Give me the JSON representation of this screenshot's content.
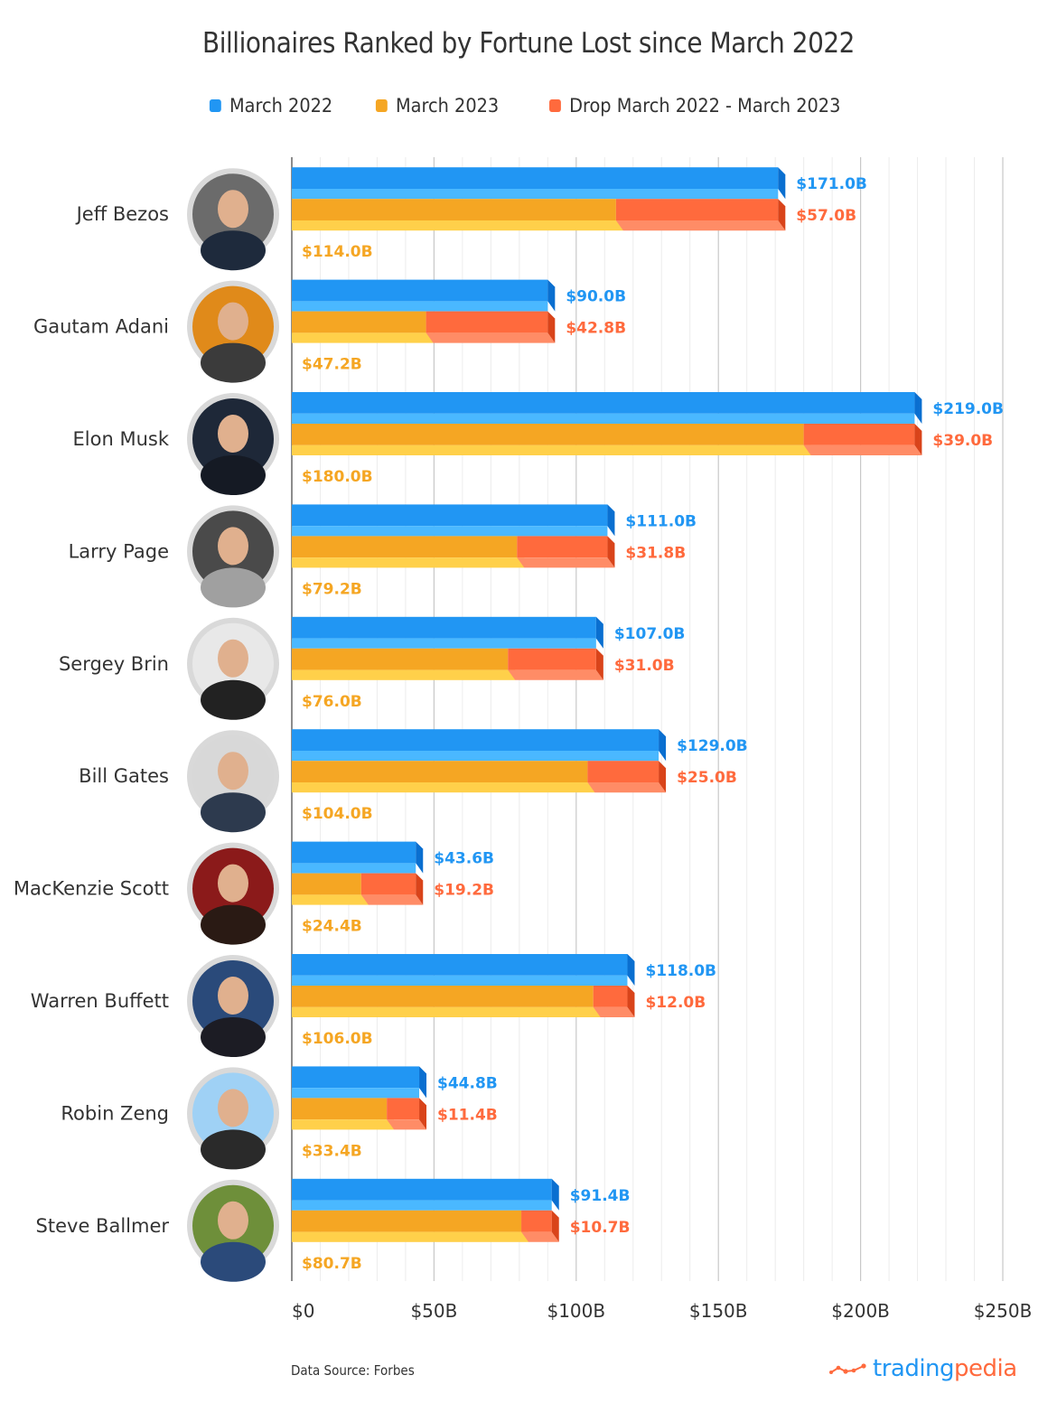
{
  "chart_data": {
    "type": "bar",
    "orientation": "horizontal",
    "title": "Billionaires Ranked by Fortune Lost since March 2022",
    "legend": {
      "placement": "top-center",
      "entries": [
        {
          "name": "March 2022",
          "color": "#2196f3"
        },
        {
          "name": "March 2023",
          "color": "#f5a623"
        },
        {
          "name": "Drop March 2022 - March 2023",
          "color": "#ff6a3d"
        }
      ]
    },
    "categories": [
      "Jeff Bezos",
      "Gautam Adani",
      "Elon Musk",
      "Larry Page",
      "Sergey Brin",
      "Bill Gates",
      "MacKenzie Scott",
      "Warren Buffett",
      "Robin Zeng",
      "Steve Ballmer"
    ],
    "series": [
      {
        "name": "March 2022",
        "values": [
          171.0,
          90.0,
          219.0,
          111.0,
          107.0,
          129.0,
          43.6,
          118.0,
          44.8,
          91.4
        ]
      },
      {
        "name": "March 2023",
        "values": [
          114.0,
          47.2,
          180.0,
          79.2,
          76.0,
          104.0,
          24.4,
          106.0,
          33.4,
          80.7
        ]
      },
      {
        "name": "Drop March 2022 - March 2023",
        "values": [
          57.0,
          42.8,
          39.0,
          31.8,
          31.0,
          25.0,
          19.2,
          12.0,
          11.4,
          10.7
        ],
        "stacked_on": "March 2023"
      }
    ],
    "data_labels": {
      "March 2022": [
        "$171.0B",
        "$90.0B",
        "$219.0B",
        "$111.0B",
        "$107.0B",
        "$129.0B",
        "$43.6B",
        "$118.0B",
        "$44.8B",
        "$91.4B"
      ],
      "March 2023": [
        "$114.0B",
        "$47.2B",
        "$180.0B",
        "$79.2B",
        "$76.0B",
        "$104.0B",
        "$24.4B",
        "$106.0B",
        "$33.4B",
        "$80.7B"
      ],
      "Drop": [
        "$57.0B",
        "$42.8B",
        "$39.0B",
        "$31.8B",
        "$31.0B",
        "$25.0B",
        "$19.2B",
        "$12.0B",
        "$11.4B",
        "$10.7B"
      ]
    },
    "xlabel": "",
    "ylabel": "",
    "xlim": [
      0,
      250
    ],
    "x_ticks": [
      0,
      50,
      100,
      150,
      200,
      250
    ],
    "x_tick_labels": [
      "$0",
      "$50B",
      "$100B",
      "$150B",
      "$200B",
      "$250B"
    ],
    "grid": true,
    "minor_grid_step": 10,
    "unit": "billion USD"
  },
  "colors": {
    "blue": "#2196f3",
    "blue_light": "#4ab8ff",
    "blue_dark": "#0a6fd0",
    "orange": "#f5a623",
    "orange_light": "#ffd04a",
    "red": "#ff6a3d",
    "red_light": "#ff8c66",
    "red_dark": "#d9441a",
    "label_blue": "#2196f3",
    "label_orange": "#f5a623",
    "label_red": "#ff6a3d"
  },
  "avatars": [
    {
      "name": "Jeff Bezos",
      "icon": "portrait-photo",
      "bg": "#6b6b6b",
      "shirt": "#1e2a3c"
    },
    {
      "name": "Gautam Adani",
      "icon": "portrait-photo",
      "bg": "#e08a1a",
      "shirt": "#3b3b3b"
    },
    {
      "name": "Elon Musk",
      "icon": "portrait-photo",
      "bg": "#1e2838",
      "shirt": "#151a24"
    },
    {
      "name": "Larry Page",
      "icon": "portrait-photo",
      "bg": "#4a4a4a",
      "shirt": "#a0a0a0"
    },
    {
      "name": "Sergey Brin",
      "icon": "portrait-photo",
      "bg": "#e8e8e8",
      "shirt": "#222222"
    },
    {
      "name": "Bill Gates",
      "icon": "portrait-photo",
      "bg": "#d8d8d8",
      "shirt": "#2d3a4e"
    },
    {
      "name": "MacKenzie Scott",
      "icon": "portrait-photo",
      "bg": "#8b1a1a",
      "shirt": "#2a1a14"
    },
    {
      "name": "Warren Buffett",
      "icon": "portrait-photo",
      "bg": "#2a4a7a",
      "shirt": "#1c1c24"
    },
    {
      "name": "Robin Zeng",
      "icon": "portrait-photo",
      "bg": "#9fd1f5",
      "shirt": "#2a2a2a"
    },
    {
      "name": "Steve Ballmer",
      "icon": "portrait-photo",
      "bg": "#6e8f3a",
      "shirt": "#2b4a7a"
    }
  ],
  "footer": {
    "source": "Data Source: Forbes",
    "logo_part1": "trading",
    "logo_part2": "pedia"
  }
}
